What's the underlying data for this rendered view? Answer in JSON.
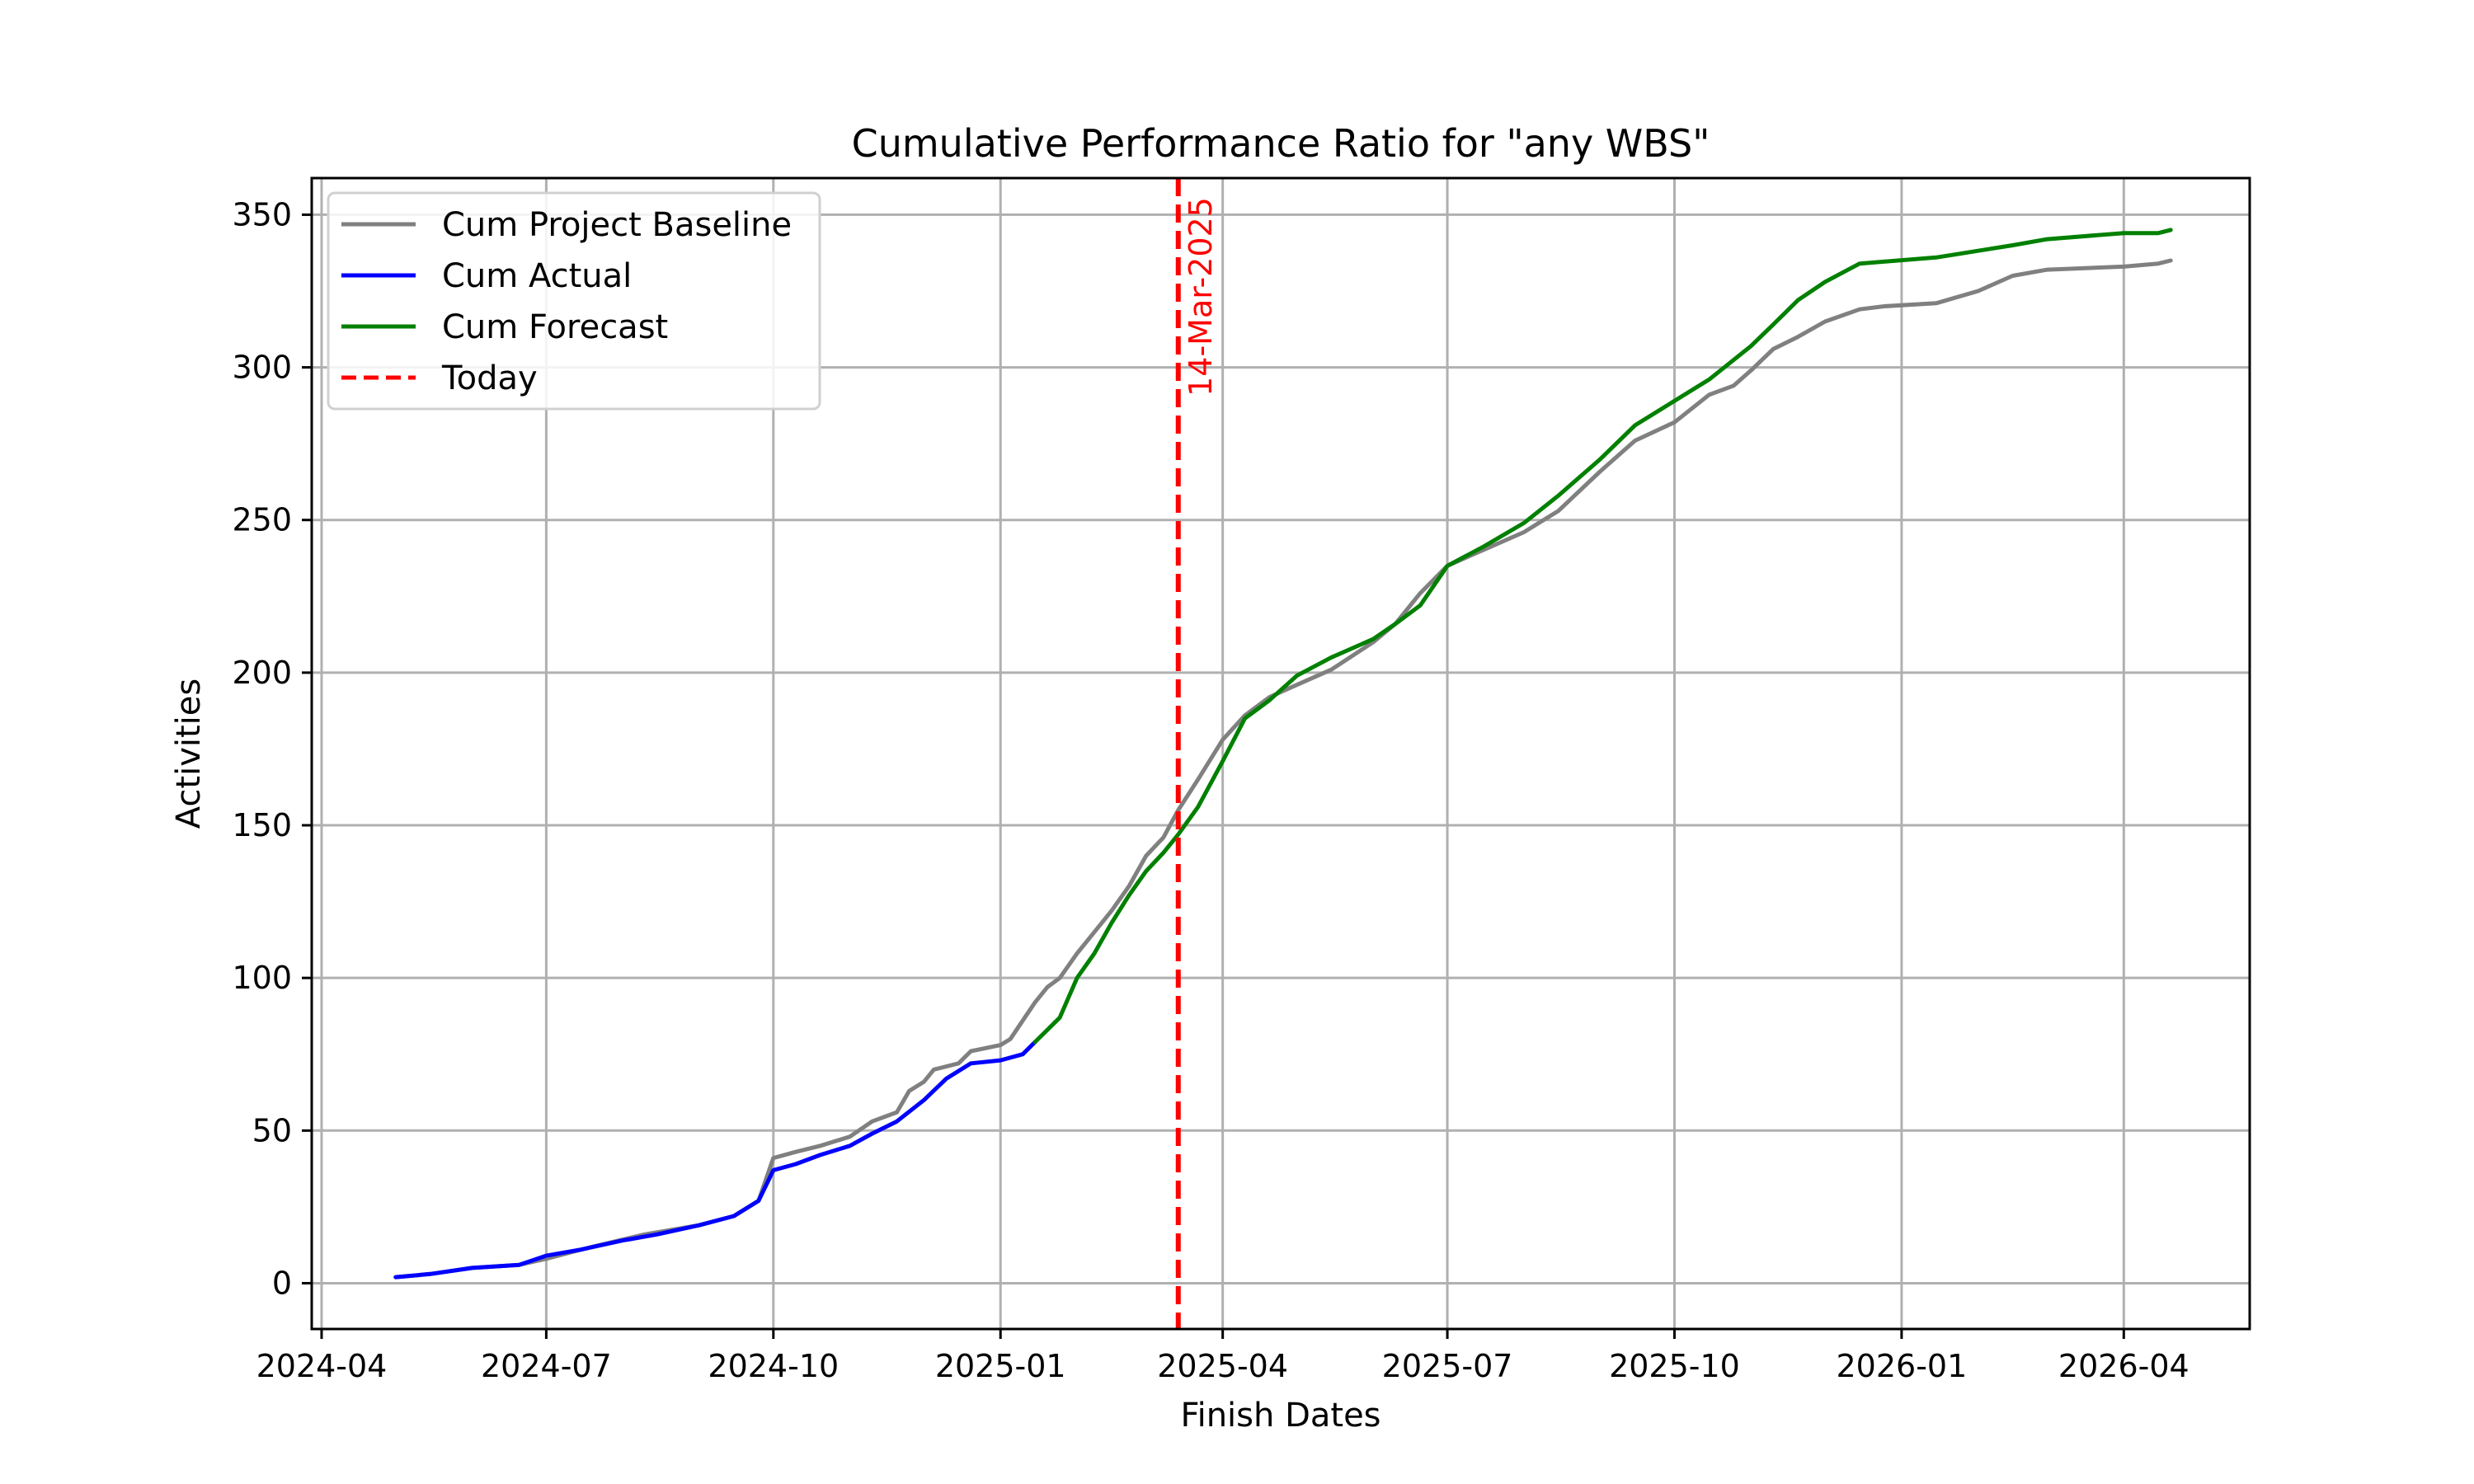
{
  "chart_data": {
    "type": "line",
    "title": "Cumulative Performance Ratio for \"any WBS\"",
    "xlabel": "Finish Dates",
    "ylabel": "Activities",
    "x_axis": {
      "kind": "date",
      "range": [
        "2024-03-28",
        "2026-05-22"
      ],
      "ticks": [
        {
          "date": "2024-04-01",
          "label": "2024-04"
        },
        {
          "date": "2024-07-01",
          "label": "2024-07"
        },
        {
          "date": "2024-10-01",
          "label": "2024-10"
        },
        {
          "date": "2025-01-01",
          "label": "2025-01"
        },
        {
          "date": "2025-04-01",
          "label": "2025-04"
        },
        {
          "date": "2025-07-01",
          "label": "2025-07"
        },
        {
          "date": "2025-10-01",
          "label": "2025-10"
        },
        {
          "date": "2026-01-01",
          "label": "2026-01"
        },
        {
          "date": "2026-04-01",
          "label": "2026-04"
        }
      ]
    },
    "y_axis": {
      "range": [
        -15,
        362
      ],
      "ticks": [
        0,
        50,
        100,
        150,
        200,
        250,
        300,
        350
      ]
    },
    "grid": true,
    "legend_position": "top-left",
    "series": [
      {
        "name": "Cum Project Baseline",
        "color": "#808080",
        "points": [
          [
            "2024-05-01",
            2
          ],
          [
            "2024-05-15",
            3
          ],
          [
            "2024-06-01",
            5
          ],
          [
            "2024-06-20",
            6
          ],
          [
            "2024-07-01",
            8
          ],
          [
            "2024-07-20",
            12
          ],
          [
            "2024-08-10",
            16
          ],
          [
            "2024-09-01",
            19
          ],
          [
            "2024-09-15",
            22
          ],
          [
            "2024-09-25",
            27
          ],
          [
            "2024-10-01",
            41
          ],
          [
            "2024-10-10",
            43
          ],
          [
            "2024-10-20",
            45
          ],
          [
            "2024-11-01",
            48
          ],
          [
            "2024-11-10",
            53
          ],
          [
            "2024-11-20",
            56
          ],
          [
            "2024-11-25",
            63
          ],
          [
            "2024-12-01",
            66
          ],
          [
            "2024-12-05",
            70
          ],
          [
            "2024-12-15",
            72
          ],
          [
            "2024-12-20",
            76
          ],
          [
            "2025-01-01",
            78
          ],
          [
            "2025-01-05",
            80
          ],
          [
            "2025-01-15",
            92
          ],
          [
            "2025-01-20",
            97
          ],
          [
            "2025-01-25",
            100
          ],
          [
            "2025-02-01",
            108
          ],
          [
            "2025-02-08",
            115
          ],
          [
            "2025-02-15",
            122
          ],
          [
            "2025-02-22",
            130
          ],
          [
            "2025-03-01",
            140
          ],
          [
            "2025-03-08",
            146
          ],
          [
            "2025-03-14",
            155
          ],
          [
            "2025-03-22",
            165
          ],
          [
            "2025-04-01",
            178
          ],
          [
            "2025-04-10",
            186
          ],
          [
            "2025-04-20",
            192
          ],
          [
            "2025-05-01",
            196
          ],
          [
            "2025-05-15",
            201
          ],
          [
            "2025-06-01",
            210
          ],
          [
            "2025-06-10",
            216
          ],
          [
            "2025-06-20",
            226
          ],
          [
            "2025-07-01",
            235
          ],
          [
            "2025-07-15",
            240
          ],
          [
            "2025-08-01",
            246
          ],
          [
            "2025-08-15",
            253
          ],
          [
            "2025-09-01",
            266
          ],
          [
            "2025-09-15",
            276
          ],
          [
            "2025-10-01",
            282
          ],
          [
            "2025-10-15",
            291
          ],
          [
            "2025-10-25",
            294
          ],
          [
            "2025-11-01",
            299
          ],
          [
            "2025-11-10",
            306
          ],
          [
            "2025-11-20",
            310
          ],
          [
            "2025-12-01",
            315
          ],
          [
            "2025-12-15",
            319
          ],
          [
            "2025-12-25",
            320
          ],
          [
            "2026-01-15",
            321
          ],
          [
            "2026-02-01",
            325
          ],
          [
            "2026-02-15",
            330
          ],
          [
            "2026-03-01",
            332
          ],
          [
            "2026-04-01",
            333
          ],
          [
            "2026-04-15",
            334
          ],
          [
            "2026-04-20",
            335
          ]
        ]
      },
      {
        "name": "Cum Actual",
        "color": "#0000ff",
        "points": [
          [
            "2024-05-01",
            2
          ],
          [
            "2024-05-15",
            3
          ],
          [
            "2024-06-01",
            5
          ],
          [
            "2024-06-20",
            6
          ],
          [
            "2024-07-01",
            9
          ],
          [
            "2024-07-15",
            11
          ],
          [
            "2024-08-01",
            14
          ],
          [
            "2024-08-15",
            16
          ],
          [
            "2024-09-01",
            19
          ],
          [
            "2024-09-15",
            22
          ],
          [
            "2024-09-25",
            27
          ],
          [
            "2024-10-01",
            37
          ],
          [
            "2024-10-10",
            39
          ],
          [
            "2024-10-20",
            42
          ],
          [
            "2024-11-01",
            45
          ],
          [
            "2024-11-10",
            49
          ],
          [
            "2024-11-20",
            53
          ],
          [
            "2024-12-01",
            60
          ],
          [
            "2024-12-10",
            67
          ],
          [
            "2024-12-20",
            72
          ],
          [
            "2025-01-01",
            73
          ],
          [
            "2025-01-10",
            75
          ],
          [
            "2025-01-15",
            79
          ]
        ]
      },
      {
        "name": "Cum Forecast",
        "color": "#008000",
        "points": [
          [
            "2025-01-15",
            79
          ],
          [
            "2025-01-25",
            87
          ],
          [
            "2025-02-01",
            100
          ],
          [
            "2025-02-08",
            108
          ],
          [
            "2025-02-15",
            118
          ],
          [
            "2025-02-22",
            127
          ],
          [
            "2025-03-01",
            135
          ],
          [
            "2025-03-08",
            141
          ],
          [
            "2025-03-14",
            147
          ],
          [
            "2025-03-22",
            156
          ],
          [
            "2025-04-01",
            171
          ],
          [
            "2025-04-10",
            185
          ],
          [
            "2025-04-20",
            191
          ],
          [
            "2025-05-01",
            199
          ],
          [
            "2025-05-15",
            205
          ],
          [
            "2025-06-01",
            211
          ],
          [
            "2025-06-10",
            216
          ],
          [
            "2025-06-20",
            222
          ],
          [
            "2025-07-01",
            235
          ],
          [
            "2025-07-15",
            241
          ],
          [
            "2025-08-01",
            249
          ],
          [
            "2025-08-15",
            258
          ],
          [
            "2025-09-01",
            270
          ],
          [
            "2025-09-15",
            281
          ],
          [
            "2025-10-01",
            289
          ],
          [
            "2025-10-15",
            296
          ],
          [
            "2025-11-01",
            307
          ],
          [
            "2025-11-10",
            314
          ],
          [
            "2025-11-20",
            322
          ],
          [
            "2025-12-01",
            328
          ],
          [
            "2025-12-15",
            334
          ],
          [
            "2026-01-15",
            336
          ],
          [
            "2026-02-15",
            340
          ],
          [
            "2026-03-01",
            342
          ],
          [
            "2026-04-01",
            344
          ],
          [
            "2026-04-15",
            344
          ],
          [
            "2026-04-20",
            345
          ]
        ]
      }
    ],
    "today_marker": {
      "date": "2025-03-14",
      "label": "14-Mar-2025",
      "legend": "Today",
      "color": "#ff0000",
      "style": "dashed"
    }
  }
}
